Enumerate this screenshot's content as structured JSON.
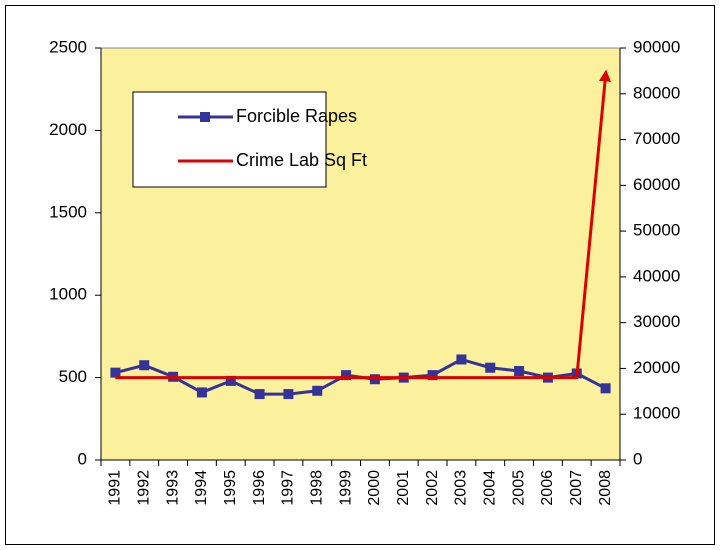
{
  "chart_data": {
    "type": "line",
    "categories": [
      "1991",
      "1992",
      "1993",
      "1994",
      "1995",
      "1996",
      "1997",
      "1998",
      "1999",
      "2000",
      "2001",
      "2002",
      "2003",
      "2004",
      "2005",
      "2006",
      "2007",
      "2008"
    ],
    "series": [
      {
        "name": "Forcible Rapes",
        "color": "#333399",
        "values": [
          530,
          575,
          505,
          410,
          480,
          400,
          400,
          420,
          515,
          490,
          500,
          515,
          610,
          560,
          540,
          500,
          525,
          435
        ]
      },
      {
        "name": "Crime Lab Sq Ft",
        "color": "#dd0000",
        "axis": "y2",
        "values": [
          18000,
          18000,
          18000,
          18000,
          18000,
          18000,
          18000,
          18000,
          18000,
          18000,
          18000,
          18000,
          18000,
          18000,
          18000,
          18000,
          18000,
          84000
        ]
      }
    ],
    "ylim": [
      0,
      2500
    ],
    "yticks": [
      0,
      500,
      1000,
      1500,
      2000,
      2500
    ],
    "y2lim": [
      0,
      90000
    ],
    "y2ticks": [
      0,
      10000,
      20000,
      30000,
      40000,
      50000,
      60000,
      70000,
      80000,
      90000
    ],
    "legend": "upper left",
    "plot_background": "#fbf09b"
  }
}
